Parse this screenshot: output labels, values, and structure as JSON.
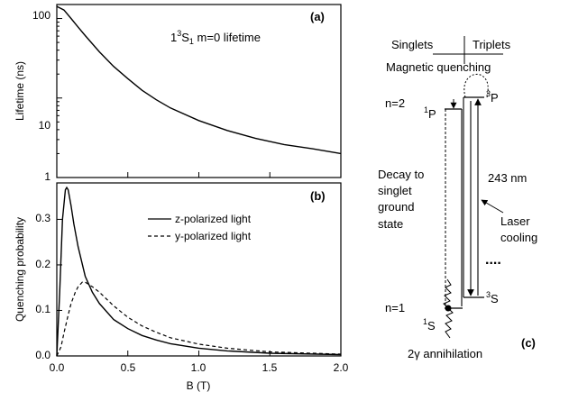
{
  "colors": {
    "line": "#000000",
    "background": "#ffffff"
  },
  "chart_data": [
    {
      "panel_label": "(a)",
      "type": "line",
      "annotation": "1³S₁ m=0 lifetime",
      "ylabel": "Lifetime (ns)",
      "xlim": [
        0,
        2
      ],
      "ylim": [
        1,
        150
      ],
      "yscale": "log",
      "y_ticks": [
        "1",
        "10",
        "100"
      ],
      "grid": false,
      "series": [
        {
          "x": [
            0,
            0.05,
            0.1,
            0.15,
            0.2,
            0.3,
            0.4,
            0.5,
            0.6,
            0.7,
            0.8,
            1.0,
            1.2,
            1.4,
            1.6,
            1.8,
            2.0
          ],
          "values": [
            142,
            128,
            100,
            78,
            61,
            38,
            25,
            17.5,
            12.5,
            9.5,
            7.5,
            5.2,
            3.9,
            3.1,
            2.6,
            2.3,
            2.0
          ]
        }
      ]
    },
    {
      "panel_label": "(b)",
      "type": "line",
      "xlabel": "B (T)",
      "ylabel": "Quenching probability",
      "xlim": [
        0,
        2
      ],
      "ylim": [
        0,
        0.38
      ],
      "x_ticks": [
        "0.0",
        "0.5",
        "1.0",
        "1.5",
        "2.0"
      ],
      "y_ticks": [
        "0.0",
        "0.1",
        "0.2",
        "0.3"
      ],
      "legend_position": "top-right",
      "grid": false,
      "series": [
        {
          "name": "z-polarized light",
          "style": "solid",
          "x": [
            0,
            0.02,
            0.04,
            0.06,
            0.07,
            0.08,
            0.1,
            0.12,
            0.15,
            0.2,
            0.25,
            0.3,
            0.4,
            0.5,
            0.6,
            0.7,
            0.8,
            1.0,
            1.2,
            1.5,
            2.0
          ],
          "values": [
            0,
            0.14,
            0.3,
            0.365,
            0.37,
            0.365,
            0.33,
            0.29,
            0.24,
            0.175,
            0.14,
            0.115,
            0.08,
            0.06,
            0.045,
            0.035,
            0.027,
            0.017,
            0.011,
            0.006,
            0.003
          ]
        },
        {
          "name": "y-polarized light",
          "style": "dashed",
          "x": [
            0,
            0.03,
            0.05,
            0.08,
            0.1,
            0.13,
            0.15,
            0.18,
            0.2,
            0.25,
            0.3,
            0.4,
            0.5,
            0.6,
            0.7,
            0.8,
            1.0,
            1.2,
            1.5,
            2.0
          ],
          "values": [
            0,
            0.02,
            0.05,
            0.09,
            0.115,
            0.14,
            0.152,
            0.162,
            0.162,
            0.152,
            0.14,
            0.11,
            0.085,
            0.066,
            0.052,
            0.04,
            0.026,
            0.017,
            0.009,
            0.004
          ]
        }
      ]
    }
  ],
  "diagram": {
    "panel_label": "(c)",
    "singlets": "Singlets",
    "triplets": "Triplets",
    "magnetic_quenching": "Magnetic quenching",
    "n2": "n=2",
    "n1": "n=1",
    "p1_sup": "1",
    "p1_main": "P",
    "p3_sup": "3",
    "p3_main": "P",
    "s1_sup": "1",
    "s1_main": "S",
    "s3_sup": "3",
    "s3_main": "S",
    "decay_line1": "Decay to",
    "decay_line2": "singlet",
    "decay_line3": "ground",
    "decay_line4": "state",
    "wavelength": "243 nm",
    "laser_line1": "Laser",
    "laser_line2": "cooling",
    "dots": "....",
    "annihilation_prefix": "2",
    "annihilation_gamma": "γ",
    "annihilation_suffix": " annihilation"
  }
}
